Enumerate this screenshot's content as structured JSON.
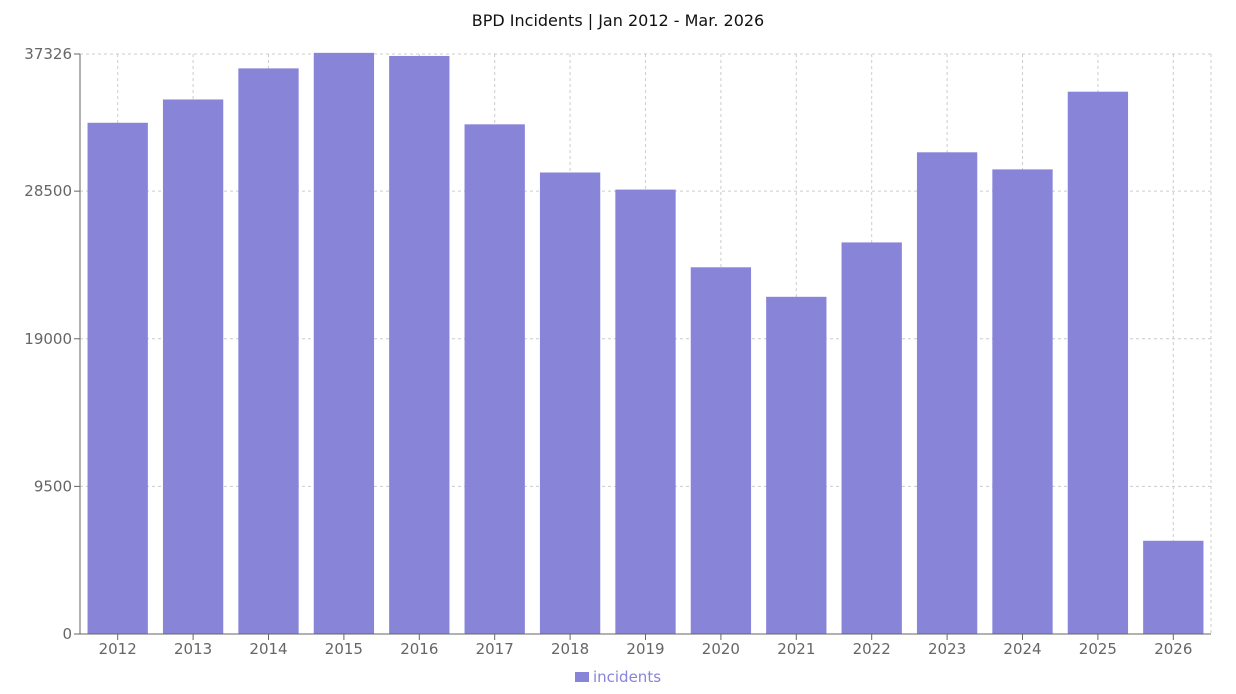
{
  "chart_data": {
    "type": "bar",
    "title": "BPD Incidents  |  Jan 2012 - Mar. 2026",
    "categories": [
      "2012",
      "2013",
      "2014",
      "2015",
      "2016",
      "2017",
      "2018",
      "2019",
      "2020",
      "2021",
      "2022",
      "2023",
      "2024",
      "2025",
      "2026"
    ],
    "series": [
      {
        "name": "incidents",
        "color": "#8884d8",
        "values": [
          32900,
          34400,
          36400,
          37400,
          37200,
          32800,
          29700,
          28600,
          23600,
          21700,
          25200,
          31000,
          29900,
          34900,
          6000
        ]
      }
    ],
    "yticks": [
      0,
      9500,
      19000,
      28500,
      37326
    ],
    "ylim": [
      0,
      37326
    ],
    "grid": true,
    "legend": "bottom-center"
  }
}
